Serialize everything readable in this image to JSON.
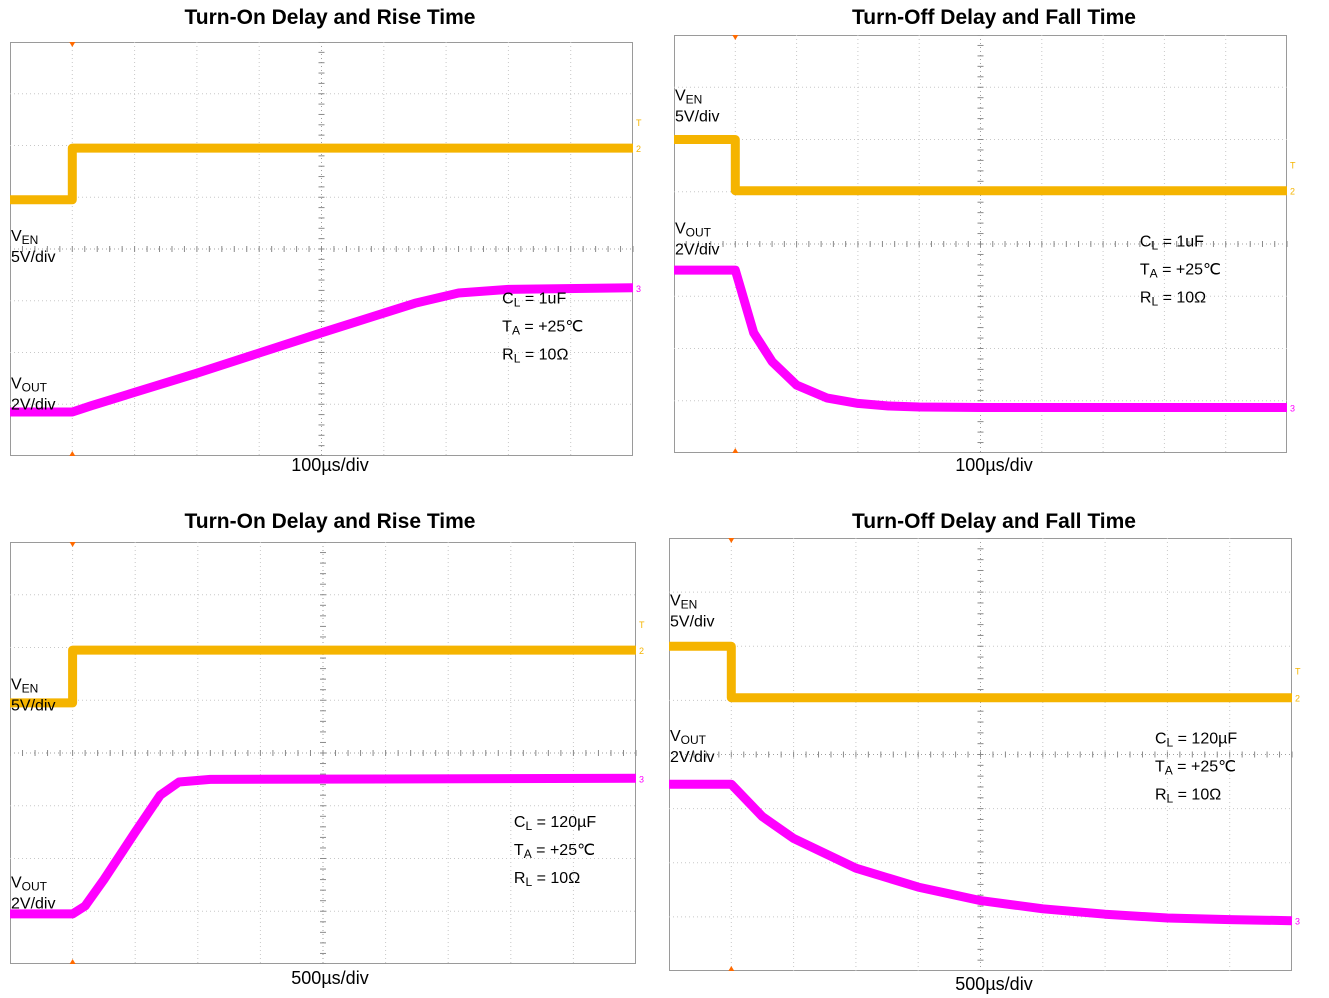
{
  "chart_data": [
    {
      "type": "line",
      "title": "Turn-On Delay and Rise Time",
      "xlabel": "100µs/div",
      "time_per_div_us": 100,
      "grid": true,
      "trigger_marker": "T",
      "series": [
        {
          "name": "VEN",
          "scale": "5V/div",
          "color": "#f5b400",
          "channel_marker": "2",
          "x_div": [
            0,
            1.0,
            1.0,
            10
          ],
          "y_div": [
            4.95,
            4.95,
            5.95,
            5.95
          ]
        },
        {
          "name": "VOUT",
          "scale": "2V/div",
          "color": "#ff00ff",
          "channel_marker": "3",
          "x_div": [
            0,
            1.0,
            1.3,
            3.0,
            5.0,
            6.5,
            7.2,
            8.0,
            10
          ],
          "y_div": [
            0.85,
            0.85,
            0.97,
            1.6,
            2.38,
            2.95,
            3.15,
            3.22,
            3.25
          ]
        }
      ],
      "annotations": [
        {
          "base": "C",
          "sub": "L",
          "rest": " = 1uF"
        },
        {
          "base": "T",
          "sub": "A",
          "rest": " = +25℃"
        },
        {
          "base": "R",
          "sub": "L",
          "rest": " = 10Ω"
        }
      ]
    },
    {
      "type": "line",
      "title": "Turn-Off Delay and Fall Time",
      "xlabel": "100µs/div",
      "time_per_div_us": 100,
      "grid": true,
      "trigger_marker": "T",
      "series": [
        {
          "name": "VEN",
          "scale": "5V/div",
          "color": "#f5b400",
          "channel_marker": "2",
          "x_div": [
            0,
            1.0,
            1.0,
            10
          ],
          "y_div": [
            6.0,
            6.0,
            5.02,
            5.02
          ]
        },
        {
          "name": "VOUT",
          "scale": "2V/div",
          "color": "#ff00ff",
          "channel_marker": "3",
          "x_div": [
            0,
            1.0,
            1.05,
            1.3,
            1.6,
            2.0,
            2.5,
            3.0,
            3.5,
            4.0,
            5.0,
            10
          ],
          "y_div": [
            3.5,
            3.5,
            3.3,
            2.3,
            1.75,
            1.3,
            1.05,
            0.95,
            0.9,
            0.88,
            0.87,
            0.87
          ]
        }
      ],
      "annotations": [
        {
          "base": "C",
          "sub": "L",
          "rest": " = 1uF"
        },
        {
          "base": "T",
          "sub": "A",
          "rest": " = +25℃"
        },
        {
          "base": "R",
          "sub": "L",
          "rest": " = 10Ω"
        }
      ]
    },
    {
      "type": "line",
      "title": "Turn-On Delay and Rise Time",
      "xlabel": "500µs/div",
      "time_per_div_us": 500,
      "grid": true,
      "trigger_marker": "T",
      "series": [
        {
          "name": "VEN",
          "scale": "5V/div",
          "color": "#f5b400",
          "channel_marker": "2",
          "x_div": [
            0,
            1.0,
            1.0,
            10
          ],
          "y_div": [
            4.95,
            4.95,
            5.95,
            5.95
          ]
        },
        {
          "name": "VOUT",
          "scale": "2V/div",
          "color": "#ff00ff",
          "channel_marker": "3",
          "x_div": [
            0,
            1.0,
            1.2,
            1.5,
            2.0,
            2.4,
            2.7,
            3.2,
            10
          ],
          "y_div": [
            0.95,
            0.95,
            1.1,
            1.6,
            2.5,
            3.2,
            3.45,
            3.5,
            3.52
          ]
        }
      ],
      "annotations": [
        {
          "base": "C",
          "sub": "L",
          "rest": " = 120µF"
        },
        {
          "base": "T",
          "sub": "A",
          "rest": " = +25℃"
        },
        {
          "base": "R",
          "sub": "L",
          "rest": " = 10Ω"
        }
      ]
    },
    {
      "type": "line",
      "title": "Turn-Off Delay and Fall Time",
      "xlabel": "500µs/div",
      "time_per_div_us": 500,
      "grid": true,
      "trigger_marker": "T",
      "series": [
        {
          "name": "VEN",
          "scale": "5V/div",
          "color": "#f5b400",
          "channel_marker": "2",
          "x_div": [
            0,
            1.0,
            1.0,
            10
          ],
          "y_div": [
            6.0,
            6.0,
            5.05,
            5.05
          ]
        },
        {
          "name": "VOUT",
          "scale": "2V/div",
          "color": "#ff00ff",
          "channel_marker": "3",
          "x_div": [
            0,
            1.0,
            1.5,
            2.0,
            3.0,
            4.0,
            5.0,
            6.0,
            7.0,
            8.0,
            9.0,
            10
          ],
          "y_div": [
            3.45,
            3.45,
            2.85,
            2.45,
            1.9,
            1.55,
            1.3,
            1.15,
            1.05,
            0.98,
            0.95,
            0.93
          ]
        }
      ],
      "annotations": [
        {
          "base": "C",
          "sub": "L",
          "rest": " = 120µF"
        },
        {
          "base": "T",
          "sub": "A",
          "rest": " = +25℃"
        },
        {
          "base": "R",
          "sub": "L",
          "rest": " = 10Ω"
        }
      ]
    }
  ]
}
